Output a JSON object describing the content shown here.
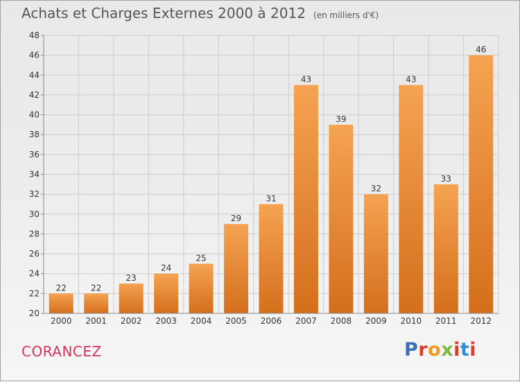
{
  "title": "Achats et Charges Externes 2000 à 2012",
  "subtitle": "(en milliers d'€)",
  "commune": "CORANCEZ",
  "logo": {
    "text": "Proxiti",
    "letter_colors": [
      "#3a6fb5",
      "#e23b2a",
      "#f29a1f",
      "#7fb83c",
      "#d63e2c",
      "#2f8fd0",
      "#e23b2a"
    ]
  },
  "colors": {
    "bar_top": "#f5a352",
    "bar_bottom": "#d46f1c",
    "grid": "#cccccc",
    "axis_text": "#333333",
    "commune": "#d2335a"
  },
  "chart_data": {
    "type": "bar",
    "title": "Achats et Charges Externes 2000 à 2012",
    "subtitle": "(en milliers d'€)",
    "categories": [
      "2000",
      "2001",
      "2002",
      "2003",
      "2004",
      "2005",
      "2006",
      "2007",
      "2008",
      "2009",
      "2010",
      "2011",
      "2012"
    ],
    "values": [
      22,
      22,
      23,
      24,
      25,
      29,
      31,
      43,
      39,
      32,
      43,
      33,
      46
    ],
    "ylim": [
      20,
      48
    ],
    "yticks": [
      20,
      22,
      24,
      26,
      28,
      30,
      32,
      34,
      36,
      38,
      40,
      42,
      44,
      46,
      48
    ],
    "grid": true,
    "xlabel": "",
    "ylabel": ""
  }
}
